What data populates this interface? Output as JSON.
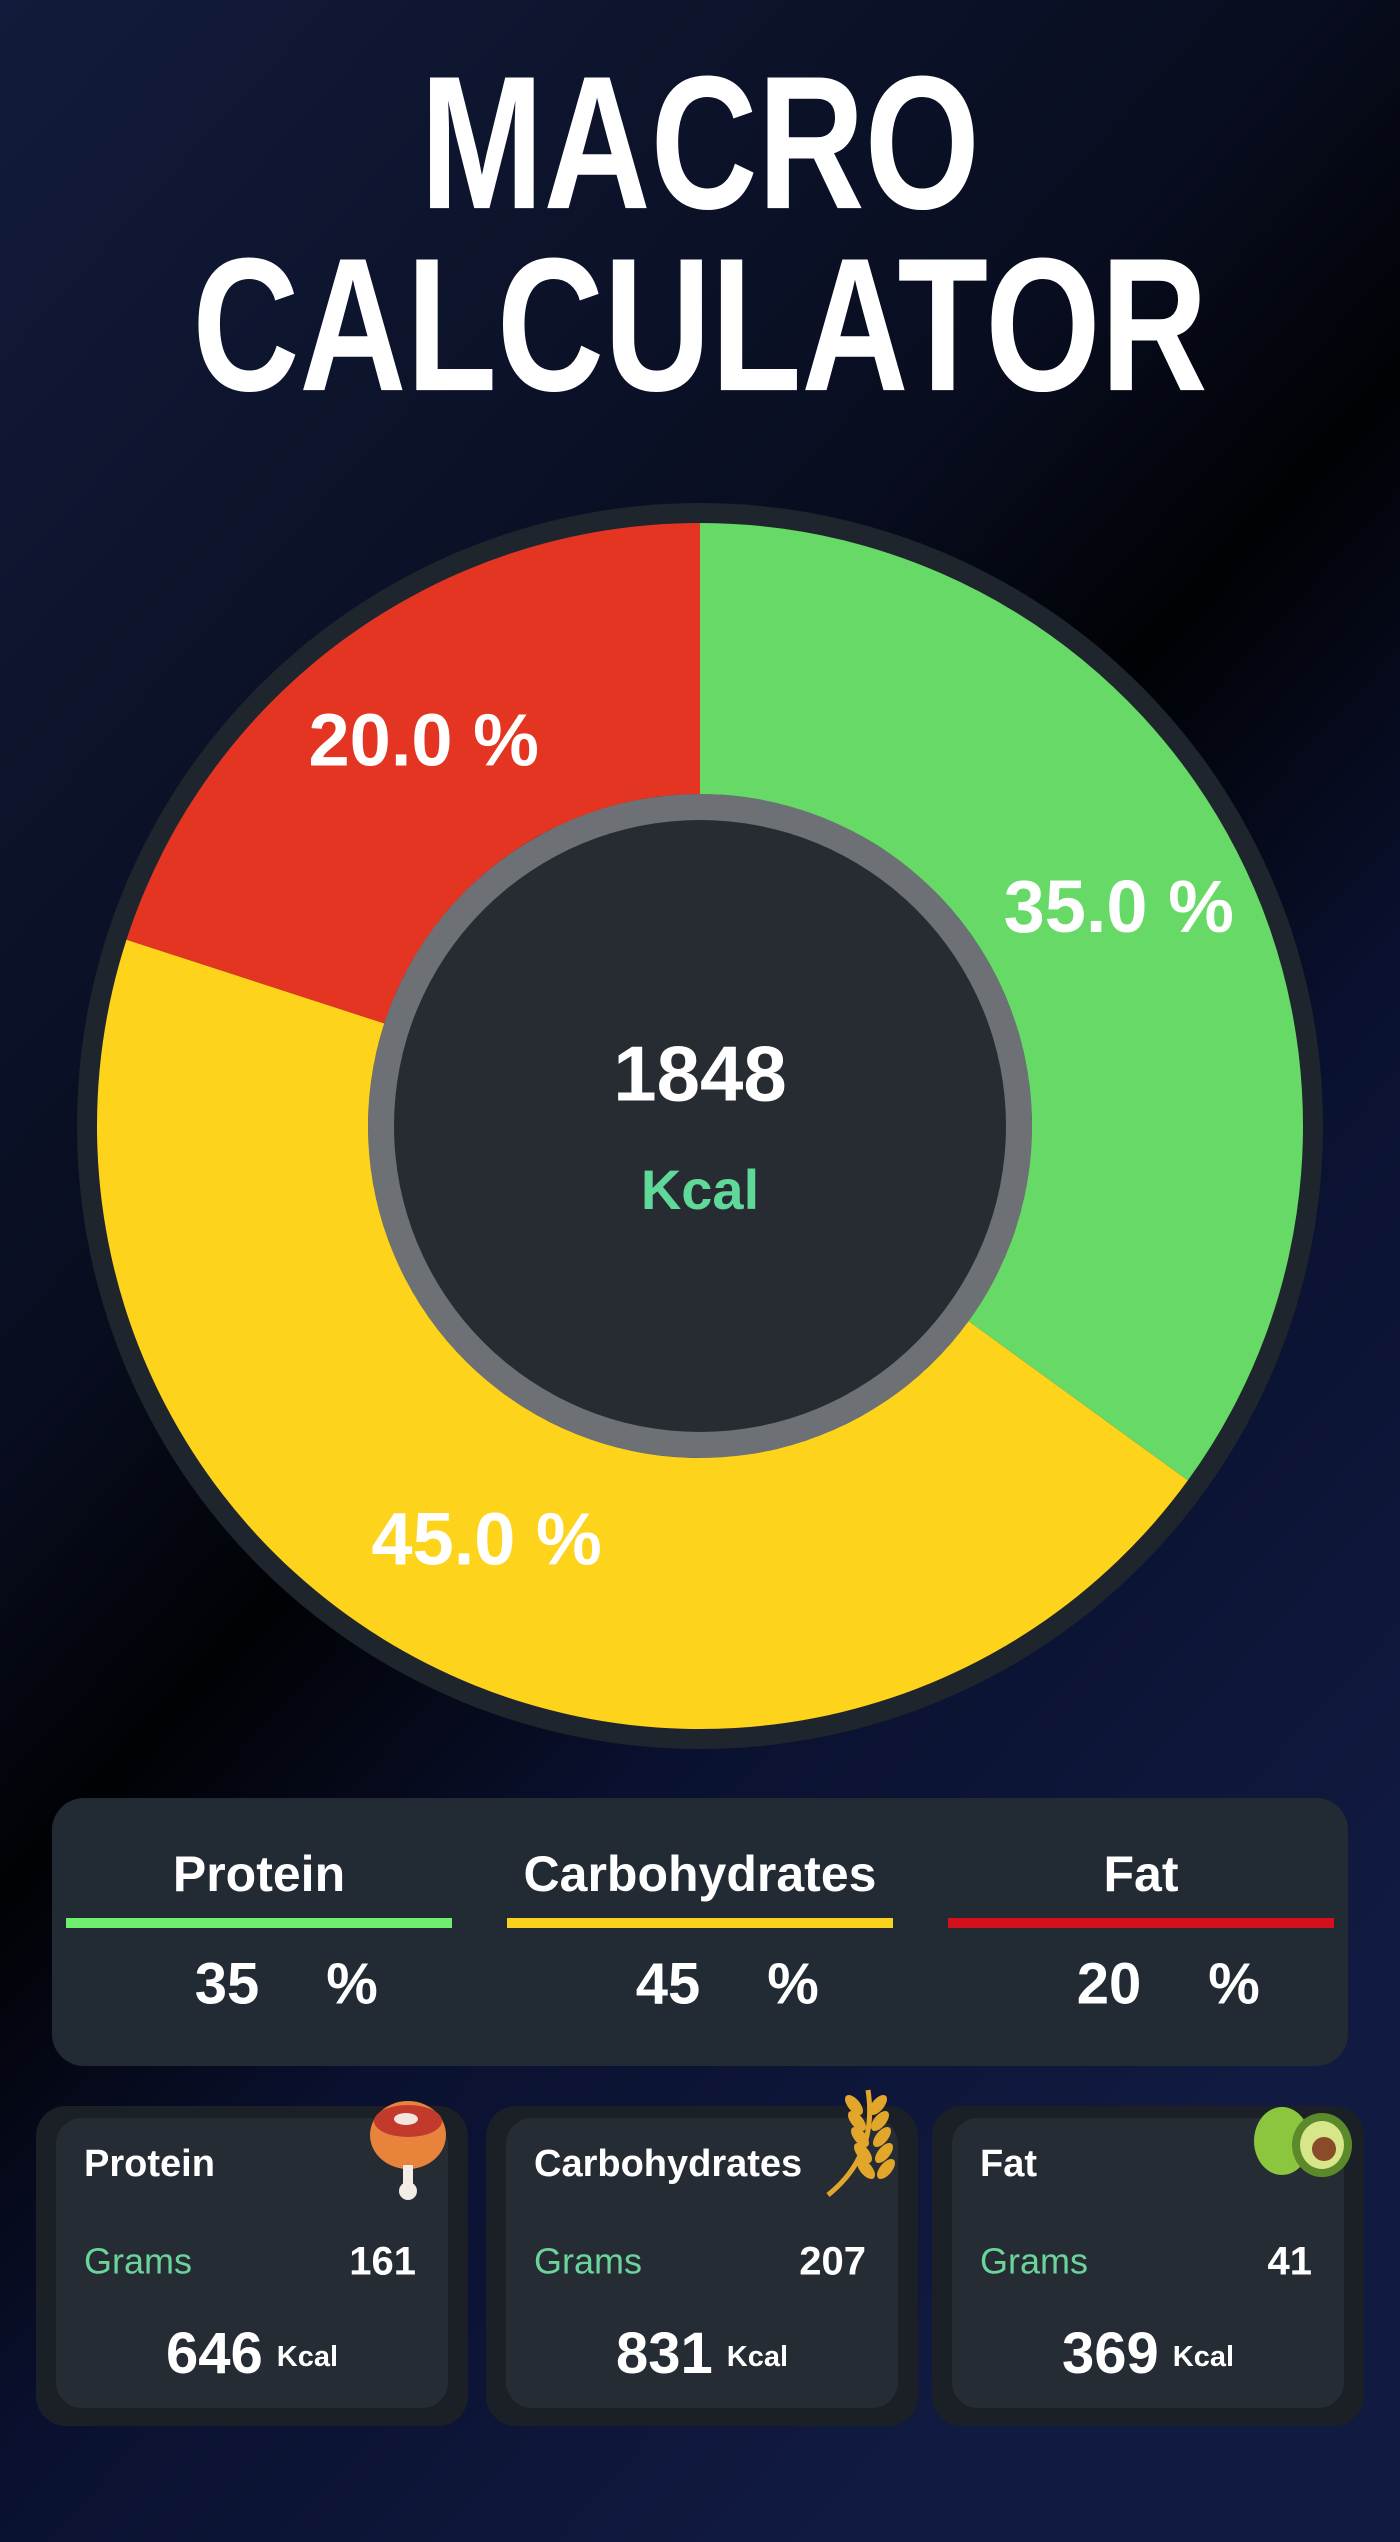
{
  "header": {
    "title_lines": [
      "MACRO",
      "CALCULATOR"
    ]
  },
  "chart_data": {
    "type": "donut",
    "values": [
      35,
      45,
      20
    ],
    "value_labels": [
      "35.0 %",
      "45.0 %",
      "20.0 %"
    ],
    "colors": [
      "#66d966",
      "#fdd31c",
      "#e43522"
    ],
    "center_value": "1848",
    "center_unit": "Kcal"
  },
  "summary": {
    "items": [
      {
        "name": "Protein",
        "percent": "35",
        "unit": "%",
        "color": "#6ef06e"
      },
      {
        "name": "Carbohydrates",
        "percent": "45",
        "unit": "%",
        "color": "#f9d21e"
      },
      {
        "name": "Fat",
        "percent": "20",
        "unit": "%",
        "color": "#d4101c"
      }
    ]
  },
  "cards": [
    {
      "name": "Protein",
      "grams_label": "Grams",
      "grams": "161",
      "kcal": "646",
      "kcal_unit": "Kcal"
    },
    {
      "name": "Carbohydrates",
      "grams_label": "Grams",
      "grams": "207",
      "kcal": "831",
      "kcal_unit": "Kcal"
    },
    {
      "name": "Fat",
      "grams_label": "Grams",
      "grams": "41",
      "kcal": "369",
      "kcal_unit": "Kcal"
    }
  ]
}
